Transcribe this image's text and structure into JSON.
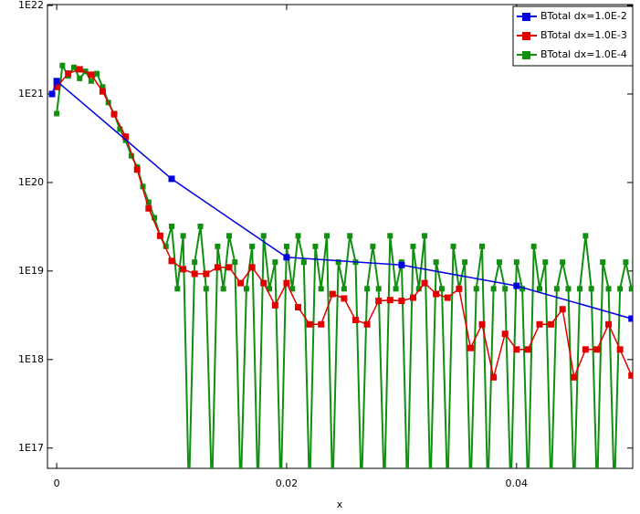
{
  "chart_data": {
    "type": "line",
    "x_label": "x",
    "log_y": true,
    "legend": "upper right",
    "xlim": [
      -0.0008,
      0.0501
    ],
    "xticks": [
      0,
      0.02,
      0.04
    ],
    "ylim": [
      5.9e+16,
      1e+22
    ],
    "yticks": [
      {
        "value": 1e+17,
        "label": "1E17"
      },
      {
        "value": 1e+18,
        "label": "1E18"
      },
      {
        "value": 1e+19,
        "label": "1E19"
      },
      {
        "value": 1e+20,
        "label": "1E20"
      },
      {
        "value": 1e+21,
        "label": "1E21"
      },
      {
        "value": 1e+22,
        "label": "1E22"
      }
    ],
    "series": [
      {
        "name": "BTotal dx=1.0E-2",
        "color": "#0000e0",
        "x": [
          -0.0004,
          0,
          0.01,
          0.02,
          0.03,
          0.04,
          0.05
        ],
        "values": [
          1e+21,
          1.4e+21,
          1.1e+20,
          1.43e+19,
          1.17e+19,
          6.8e+18,
          2.9e+18
        ]
      },
      {
        "name": "BTotal dx=1.0E-3",
        "color": "#e00000",
        "x": [
          0,
          0.001,
          0.002,
          0.003,
          0.004,
          0.005,
          0.006,
          0.007,
          0.008,
          0.009,
          0.01,
          0.011,
          0.012,
          0.013,
          0.014,
          0.015,
          0.016,
          0.017,
          0.018,
          0.019,
          0.02,
          0.021,
          0.022,
          0.023,
          0.024,
          0.025,
          0.026,
          0.027,
          0.028,
          0.029,
          0.03,
          0.031,
          0.032,
          0.033,
          0.034,
          0.035,
          0.036,
          0.037,
          0.038,
          0.039,
          0.04,
          0.041,
          0.042,
          0.043,
          0.044,
          0.045,
          0.046,
          0.047,
          0.048,
          0.049,
          0.05
        ],
        "values": [
          1.2e+21,
          1.7e+21,
          1.9e+21,
          1.65e+21,
          1.07e+21,
          5.9e+20,
          3.3e+20,
          1.4e+20,
          5.1e+19,
          2.5e+19,
          1.3e+19,
          1.05e+19,
          9.3e+18,
          9.3e+18,
          1.1e+19,
          1.1e+19,
          7.3e+18,
          1.1e+19,
          7.3e+18,
          4.1e+18,
          7.3e+18,
          3.9e+18,
          2.5e+18,
          2.5e+18,
          5.5e+18,
          4.9e+18,
          2.8e+18,
          2.5e+18,
          4.6e+18,
          4.7e+18,
          4.6e+18,
          5e+18,
          7.3e+18,
          5.5e+18,
          5e+18,
          6.3e+18,
          1.35e+18,
          2.5e+18,
          6.3e+17,
          1.95e+18,
          1.3e+18,
          1.3e+18,
          2.5e+18,
          2.5e+18,
          3.7e+18,
          6.3e+17,
          1.3e+18,
          1.3e+18,
          2.5e+18,
          1.3e+18,
          6.6e+17
        ]
      },
      {
        "name": "BTotal dx=1.0E-4",
        "color": "#118f11",
        "x": [
          0,
          0.0005,
          0.001,
          0.0015,
          0.002,
          0.0025,
          0.003,
          0.0035,
          0.004,
          0.0045,
          0.005,
          0.0055,
          0.006,
          0.0065,
          0.007,
          0.0075,
          0.008,
          0.0085,
          0.009,
          0.0095,
          0.01,
          0.0105,
          0.011,
          0.0115,
          0.012,
          0.0125,
          0.013,
          0.0135,
          0.014,
          0.0145,
          0.015,
          0.0155,
          0.016,
          0.0165,
          0.017,
          0.0175,
          0.018,
          0.0185,
          0.019,
          0.0195,
          0.02,
          0.0205,
          0.021,
          0.0215,
          0.022,
          0.0225,
          0.023,
          0.0235,
          0.024,
          0.0245,
          0.025,
          0.0255,
          0.026,
          0.0265,
          0.027,
          0.0275,
          0.028,
          0.0285,
          0.029,
          0.0295,
          0.03,
          0.0305,
          0.031,
          0.0315,
          0.032,
          0.0325,
          0.033,
          0.0335,
          0.034,
          0.0345,
          0.035,
          0.0355,
          0.036,
          0.0365,
          0.037,
          0.0375,
          0.038,
          0.0385,
          0.039,
          0.0395,
          0.04,
          0.0405,
          0.041,
          0.0415,
          0.042,
          0.0425,
          0.043,
          0.0435,
          0.044,
          0.0445,
          0.045,
          0.0455,
          0.046,
          0.0465,
          0.047,
          0.0475,
          0.048,
          0.0485,
          0.049,
          0.0495,
          0.05
        ],
        "values": [
          6e+20,
          2.1e+21,
          1.6e+21,
          2e+21,
          1.5e+21,
          1.8e+21,
          1.4e+21,
          1.7e+21,
          1.2e+21,
          8e+20,
          6e+20,
          4e+20,
          3e+20,
          2e+20,
          1.5e+20,
          9e+19,
          6e+19,
          4e+19,
          2.5e+19,
          1.9e+19,
          3.2e+19,
          6.3e+18,
          2.5e+19,
          0,
          1.26e+19,
          3.2e+19,
          6.3e+18,
          0,
          1.9e+19,
          6.3e+18,
          2.5e+19,
          1.26e+19,
          0,
          6.3e+18,
          1.9e+19,
          0,
          2.5e+19,
          6.3e+18,
          1.26e+19,
          0,
          1.9e+19,
          6.3e+18,
          2.5e+19,
          1.26e+19,
          0,
          1.9e+19,
          6.3e+18,
          2.5e+19,
          0,
          1.26e+19,
          6.3e+18,
          2.5e+19,
          1.26e+19,
          0,
          6.3e+18,
          1.9e+19,
          6.3e+18,
          0,
          2.5e+19,
          6.3e+18,
          1.26e+19,
          0,
          1.9e+19,
          6.3e+18,
          2.5e+19,
          0,
          1.26e+19,
          6.3e+18,
          0,
          1.9e+19,
          6.3e+18,
          1.26e+19,
          0,
          6.3e+18,
          1.9e+19,
          0,
          6.3e+18,
          1.26e+19,
          6.3e+18,
          0,
          1.26e+19,
          6.3e+18,
          0,
          1.9e+19,
          6.3e+18,
          1.26e+19,
          0,
          6.3e+18,
          1.26e+19,
          6.3e+18,
          0,
          6.3e+18,
          2.5e+19,
          6.3e+18,
          0,
          1.26e+19,
          6.3e+18,
          0,
          6.3e+18,
          1.26e+19,
          6.3e+18
        ]
      }
    ]
  }
}
